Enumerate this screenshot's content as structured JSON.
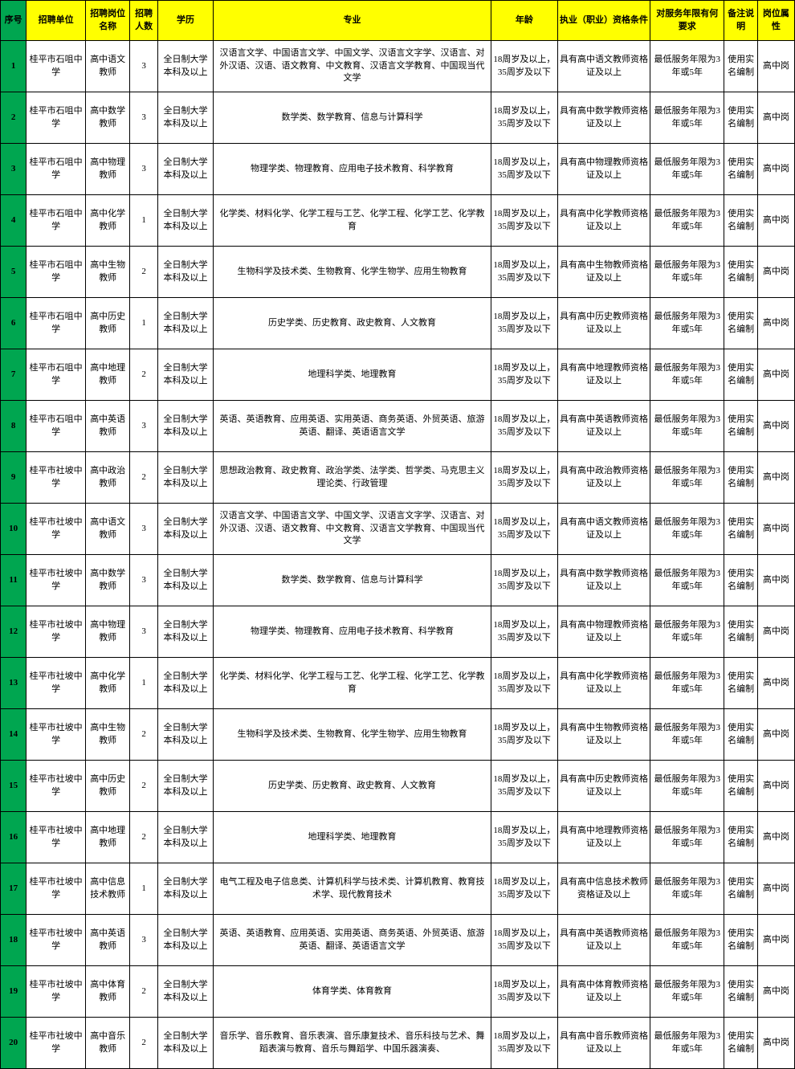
{
  "columns": [
    "序号",
    "招聘单位",
    "招聘岗位名称",
    "招聘人数",
    "学历",
    "专业",
    "年龄",
    "执业（职业）资格条件",
    "对服务年限有何要求",
    "备注说明",
    "岗位属性"
  ],
  "rows": [
    {
      "seq": "1",
      "unit": "桂平市石咀中学",
      "pos": "高中语文教师",
      "num": "3",
      "edu": "全日制大学本科及以上",
      "major": "汉语言文学、中国语言文学、中国文学、汉语言文字学、汉语言、对外汉语、汉语、语文教育、中文教育、汉语言文学教育、中国现当代文学",
      "age": "18周岁及以上，35周岁及以下",
      "cert": "具有高中语文教师资格证及以上",
      "svc": "最低服务年限为3年或5年",
      "note": "使用实名编制",
      "type": "高中岗"
    },
    {
      "seq": "2",
      "unit": "桂平市石咀中学",
      "pos": "高中数学教师",
      "num": "3",
      "edu": "全日制大学本科及以上",
      "major": "数学类、数学教育、信息与计算科学",
      "age": "18周岁及以上，35周岁及以下",
      "cert": "具有高中数学教师资格证及以上",
      "svc": "最低服务年限为3年或5年",
      "note": "使用实名编制",
      "type": "高中岗"
    },
    {
      "seq": "3",
      "unit": "桂平市石咀中学",
      "pos": "高中物理教师",
      "num": "3",
      "edu": "全日制大学本科及以上",
      "major": "物理学类、物理教育、应用电子技术教育、科学教育",
      "age": "18周岁及以上，35周岁及以下",
      "cert": "具有高中物理教师资格证及以上",
      "svc": "最低服务年限为3年或5年",
      "note": "使用实名编制",
      "type": "高中岗"
    },
    {
      "seq": "4",
      "unit": "桂平市石咀中学",
      "pos": "高中化学教师",
      "num": "1",
      "edu": "全日制大学本科及以上",
      "major": "化学类、材料化学、化学工程与工艺、化学工程、化学工艺、化学教育",
      "age": "18周岁及以上，35周岁及以下",
      "cert": "具有高中化学教师资格证及以上",
      "svc": "最低服务年限为3年或5年",
      "note": "使用实名编制",
      "type": "高中岗"
    },
    {
      "seq": "5",
      "unit": "桂平市石咀中学",
      "pos": "高中生物教师",
      "num": "2",
      "edu": "全日制大学本科及以上",
      "major": "生物科学及技术类、生物教育、化学生物学、应用生物教育",
      "age": "18周岁及以上，35周岁及以下",
      "cert": "具有高中生物教师资格证及以上",
      "svc": "最低服务年限为3年或5年",
      "note": "使用实名编制",
      "type": "高中岗"
    },
    {
      "seq": "6",
      "unit": "桂平市石咀中学",
      "pos": "高中历史教师",
      "num": "1",
      "edu": "全日制大学本科及以上",
      "major": "历史学类、历史教育、政史教育、人文教育",
      "age": "18周岁及以上，35周岁及以下",
      "cert": "具有高中历史教师资格证及以上",
      "svc": "最低服务年限为3年或5年",
      "note": "使用实名编制",
      "type": "高中岗"
    },
    {
      "seq": "7",
      "unit": "桂平市石咀中学",
      "pos": "高中地理教师",
      "num": "2",
      "edu": "全日制大学本科及以上",
      "major": "地理科学类、地理教育",
      "age": "18周岁及以上，35周岁及以下",
      "cert": "具有高中地理教师资格证及以上",
      "svc": "最低服务年限为3年或5年",
      "note": "使用实名编制",
      "type": "高中岗"
    },
    {
      "seq": "8",
      "unit": "桂平市石咀中学",
      "pos": "高中英语教师",
      "num": "3",
      "edu": "全日制大学本科及以上",
      "major": "英语、英语教育、应用英语、实用英语、商务英语、外贸英语、旅游英语、翻译、英语语言文学",
      "age": "18周岁及以上，35周岁及以下",
      "cert": "具有高中英语教师资格证及以上",
      "svc": "最低服务年限为3年或5年",
      "note": "使用实名编制",
      "type": "高中岗"
    },
    {
      "seq": "9",
      "unit": "桂平市社坡中学",
      "pos": "高中政治教师",
      "num": "2",
      "edu": "全日制大学本科及以上",
      "major": "思想政治教育、政史教育、政治学类、法学类、哲学类、马克思主义理论类、行政管理",
      "age": "18周岁及以上，35周岁及以下",
      "cert": "具有高中政治教师资格证及以上",
      "svc": "最低服务年限为3年或5年",
      "note": "使用实名编制",
      "type": "高中岗"
    },
    {
      "seq": "10",
      "unit": "桂平市社坡中学",
      "pos": "高中语文教师",
      "num": "3",
      "edu": "全日制大学本科及以上",
      "major": "汉语言文学、中国语言文学、中国文学、汉语言文字学、汉语言、对外汉语、汉语、语文教育、中文教育、汉语言文学教育、中国现当代文学",
      "age": "18周岁及以上，35周岁及以下",
      "cert": "具有高中语文教师资格证及以上",
      "svc": "最低服务年限为3年或5年",
      "note": "使用实名编制",
      "type": "高中岗"
    },
    {
      "seq": "11",
      "unit": "桂平市社坡中学",
      "pos": "高中数学教师",
      "num": "3",
      "edu": "全日制大学本科及以上",
      "major": "数学类、数学教育、信息与计算科学",
      "age": "18周岁及以上，35周岁及以下",
      "cert": "具有高中数学教师资格证及以上",
      "svc": "最低服务年限为3年或5年",
      "note": "使用实名编制",
      "type": "高中岗"
    },
    {
      "seq": "12",
      "unit": "桂平市社坡中学",
      "pos": "高中物理教师",
      "num": "3",
      "edu": "全日制大学本科及以上",
      "major": "物理学类、物理教育、应用电子技术教育、科学教育",
      "age": "18周岁及以上，35周岁及以下",
      "cert": "具有高中物理教师资格证及以上",
      "svc": "最低服务年限为3年或5年",
      "note": "使用实名编制",
      "type": "高中岗"
    },
    {
      "seq": "13",
      "unit": "桂平市社坡中学",
      "pos": "高中化学教师",
      "num": "1",
      "edu": "全日制大学本科及以上",
      "major": "化学类、材料化学、化学工程与工艺、化学工程、化学工艺、化学教育",
      "age": "18周岁及以上，35周岁及以下",
      "cert": "具有高中化学教师资格证及以上",
      "svc": "最低服务年限为3年或5年",
      "note": "使用实名编制",
      "type": "高中岗"
    },
    {
      "seq": "14",
      "unit": "桂平市社坡中学",
      "pos": "高中生物教师",
      "num": "2",
      "edu": "全日制大学本科及以上",
      "major": "生物科学及技术类、生物教育、化学生物学、应用生物教育",
      "age": "18周岁及以上，35周岁及以下",
      "cert": "具有高中生物教师资格证及以上",
      "svc": "最低服务年限为3年或5年",
      "note": "使用实名编制",
      "type": "高中岗"
    },
    {
      "seq": "15",
      "unit": "桂平市社坡中学",
      "pos": "高中历史教师",
      "num": "2",
      "edu": "全日制大学本科及以上",
      "major": "历史学类、历史教育、政史教育、人文教育",
      "age": "18周岁及以上，35周岁及以下",
      "cert": "具有高中历史教师资格证及以上",
      "svc": "最低服务年限为3年或5年",
      "note": "使用实名编制",
      "type": "高中岗"
    },
    {
      "seq": "16",
      "unit": "桂平市社坡中学",
      "pos": "高中地理教师",
      "num": "2",
      "edu": "全日制大学本科及以上",
      "major": "地理科学类、地理教育",
      "age": "18周岁及以上，35周岁及以下",
      "cert": "具有高中地理教师资格证及以上",
      "svc": "最低服务年限为3年或5年",
      "note": "使用实名编制",
      "type": "高中岗"
    },
    {
      "seq": "17",
      "unit": "桂平市社坡中学",
      "pos": "高中信息技术教师",
      "num": "1",
      "edu": "全日制大学本科及以上",
      "major": "电气工程及电子信息类、计算机科学与技术类、计算机教育、教育技术学、现代教育技术",
      "age": "18周岁及以上，35周岁及以下",
      "cert": "具有高中信息技术教师资格证及以上",
      "svc": "最低服务年限为3年或5年",
      "note": "使用实名编制",
      "type": "高中岗"
    },
    {
      "seq": "18",
      "unit": "桂平市社坡中学",
      "pos": "高中英语教师",
      "num": "3",
      "edu": "全日制大学本科及以上",
      "major": "英语、英语教育、应用英语、实用英语、商务英语、外贸英语、旅游英语、翻译、英语语言文学",
      "age": "18周岁及以上，35周岁及以下",
      "cert": "具有高中英语教师资格证及以上",
      "svc": "最低服务年限为3年或5年",
      "note": "使用实名编制",
      "type": "高中岗"
    },
    {
      "seq": "19",
      "unit": "桂平市社坡中学",
      "pos": "高中体育教师",
      "num": "2",
      "edu": "全日制大学本科及以上",
      "major": "体育学类、体育教育",
      "age": "18周岁及以上，35周岁及以下",
      "cert": "具有高中体育教师资格证及以上",
      "svc": "最低服务年限为3年或5年",
      "note": "使用实名编制",
      "type": "高中岗"
    },
    {
      "seq": "20",
      "unit": "桂平市社坡中学",
      "pos": "高中音乐教师",
      "num": "2",
      "edu": "全日制大学本科及以上",
      "major": "音乐学、音乐教育、音乐表演、音乐康复技术、音乐科技与艺术、舞蹈表演与教育、音乐与舞蹈学、中国乐器演奏、",
      "age": "18周岁及以上，35周岁及以下",
      "cert": "具有高中音乐教师资格证及以上",
      "svc": "最低服务年限为3年或5年",
      "note": "使用实名编制",
      "type": "高中岗"
    }
  ],
  "style": {
    "header_bg": "#ffff00",
    "seq_bg": "#00a650",
    "border": "#000000",
    "font_size": 11
  }
}
